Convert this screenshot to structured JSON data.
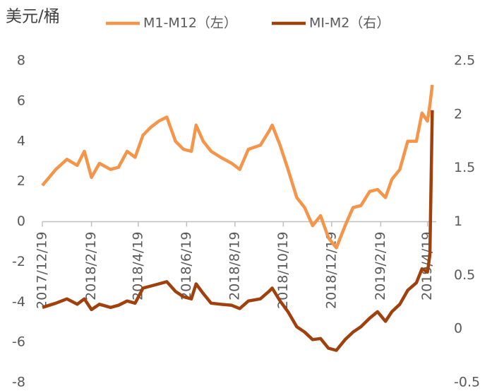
{
  "chart_data": {
    "type": "line",
    "title": "美元/桶",
    "xlim": [
      "2017/12/19",
      "2019/4/30"
    ],
    "xticks": [
      "2017/12/19",
      "2018/2/19",
      "2018/4/19",
      "2018/6/19",
      "2018/8/19",
      "2018/10/19",
      "2018/12/19",
      "2019/2/19",
      "2019/4/19"
    ],
    "ylim": [
      -8,
      8
    ],
    "yticks": [
      -8,
      -6,
      -4,
      -2,
      0,
      2,
      4,
      6,
      8
    ],
    "y2lim": [
      -0.5,
      2.5
    ],
    "y2ticks": [
      -0.5,
      0,
      0.5,
      1,
      1.5,
      2,
      2.5
    ],
    "x": [
      "2017/12/19",
      "2018/1/5",
      "2018/1/19",
      "2018/2/1",
      "2018/2/10",
      "2018/2/19",
      "2018/3/1",
      "2018/3/15",
      "2018/3/25",
      "2018/4/5",
      "2018/4/15",
      "2018/4/25",
      "2018/5/5",
      "2018/5/15",
      "2018/5/25",
      "2018/6/5",
      "2018/6/15",
      "2018/6/25",
      "2018/7/1",
      "2018/7/10",
      "2018/7/20",
      "2018/8/1",
      "2018/8/15",
      "2018/8/25",
      "2018/9/5",
      "2018/9/20",
      "2018/10/1",
      "2018/10/5",
      "2018/10/15",
      "2018/10/25",
      "2018/11/5",
      "2018/11/15",
      "2018/11/25",
      "2018/12/5",
      "2018/12/15",
      "2018/12/25",
      "2019/1/5",
      "2019/1/15",
      "2019/1/25",
      "2019/2/5",
      "2019/2/15",
      "2019/2/25",
      "2019/3/5",
      "2019/3/15",
      "2019/3/25",
      "2019/4/5",
      "2019/4/12",
      "2019/4/19",
      "2019/4/22",
      "2019/4/25"
    ],
    "series": [
      {
        "name": "M1-M12（左）",
        "color": "#f4954a",
        "axis": "y",
        "values": [
          1.8,
          2.6,
          3.1,
          2.8,
          3.5,
          2.2,
          2.9,
          2.6,
          2.7,
          3.5,
          3.2,
          4.3,
          4.7,
          5.0,
          5.2,
          4.0,
          3.6,
          3.5,
          4.8,
          4.0,
          3.5,
          3.2,
          2.9,
          2.6,
          3.6,
          3.8,
          4.5,
          4.8,
          3.8,
          2.6,
          1.2,
          0.7,
          -0.2,
          0.3,
          -0.8,
          -1.3,
          -0.2,
          0.7,
          0.8,
          1.5,
          1.6,
          1.2,
          2.1,
          2.6,
          4.0,
          4.0,
          5.4,
          5.0,
          5.8,
          6.8
        ]
      },
      {
        "name": "MI-M2（右）",
        "color": "#a0400c",
        "axis": "y2",
        "values": [
          0.2,
          0.24,
          0.28,
          0.23,
          0.28,
          0.18,
          0.23,
          0.2,
          0.22,
          0.26,
          0.24,
          0.38,
          0.4,
          0.42,
          0.44,
          0.35,
          0.3,
          0.28,
          0.42,
          0.33,
          0.24,
          0.23,
          0.22,
          0.19,
          0.26,
          0.28,
          0.35,
          0.38,
          0.26,
          0.16,
          0.02,
          -0.03,
          -0.1,
          -0.09,
          -0.18,
          -0.2,
          -0.1,
          -0.03,
          0.02,
          0.1,
          0.16,
          0.07,
          0.16,
          0.23,
          0.36,
          0.43,
          0.56,
          0.53,
          0.69,
          2.04
        ]
      }
    ]
  }
}
